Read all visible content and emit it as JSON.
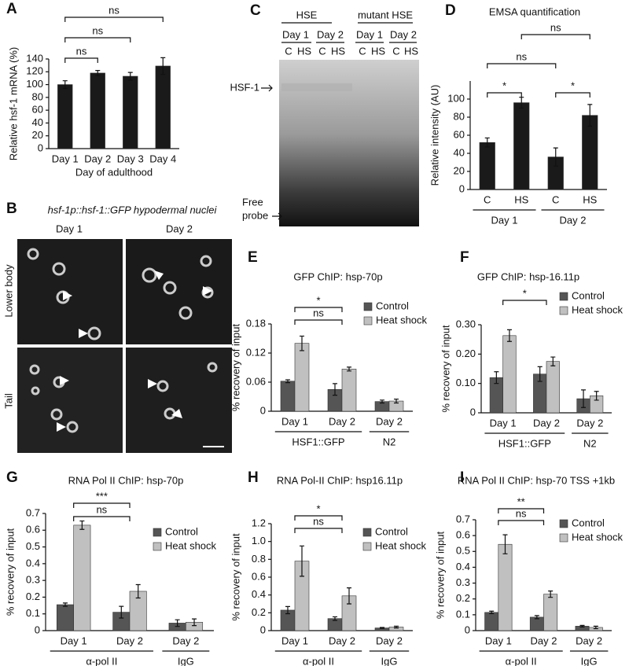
{
  "chart_data": [
    {
      "type": "bar",
      "panel": "A",
      "ylabel": "Relative hsf-1 mRNA (%)",
      "xlabel": "Day of adulthood",
      "categories": [
        "Day 1",
        "Day 2",
        "Day 3",
        "Day 4"
      ],
      "values": [
        100,
        118,
        113,
        129
      ],
      "errors": [
        6,
        4,
        6,
        13
      ],
      "color": "#1a1a1a",
      "ylim": [
        0,
        140
      ],
      "yticks": [
        0,
        20,
        40,
        60,
        80,
        100,
        120,
        140
      ],
      "significance": [
        {
          "between": [
            0,
            1
          ],
          "label": "ns"
        },
        {
          "between": [
            0,
            2
          ],
          "label": "ns"
        },
        {
          "between": [
            0,
            3
          ],
          "label": "ns"
        }
      ]
    },
    {
      "type": "bar",
      "panel": "D",
      "title": "EMSA quantification",
      "ylabel": "Relative intensity (AU)",
      "categories": [
        "C",
        "HS",
        "C",
        "HS"
      ],
      "values": [
        52,
        96,
        36,
        82
      ],
      "errors": [
        5,
        6,
        10,
        12
      ],
      "color": "#1a1a1a",
      "ylim": [
        0,
        120
      ],
      "yticks": [
        0,
        20,
        40,
        60,
        80,
        100
      ],
      "groups": [
        {
          "label": "Day 1",
          "span": [
            0,
            1
          ]
        },
        {
          "label": "Day 2",
          "span": [
            2,
            3
          ]
        }
      ],
      "significance": [
        {
          "between": [
            0,
            1
          ],
          "label": "*"
        },
        {
          "between": [
            2,
            3
          ],
          "label": "*"
        },
        {
          "between": [
            0,
            2
          ],
          "label": "ns"
        },
        {
          "between": [
            1,
            3
          ],
          "label": "ns"
        }
      ]
    },
    {
      "type": "bar",
      "panel": "E",
      "title": "GFP ChIP: hsp-70p",
      "ylabel": "% recovery of input",
      "categories": [
        "Day 1",
        "Day 2",
        "Day 2"
      ],
      "series": [
        {
          "name": "Control",
          "color": "#555555",
          "values": [
            0.062,
            0.045,
            0.02
          ],
          "errors": [
            0.003,
            0.012,
            0.003
          ]
        },
        {
          "name": "Heat shock",
          "color": "#c0c0c0",
          "values": [
            0.14,
            0.087,
            0.021
          ],
          "errors": [
            0.015,
            0.004,
            0.004
          ]
        }
      ],
      "ylim": [
        0,
        0.18
      ],
      "yticks": [
        0,
        0.06,
        0.12,
        0.18
      ],
      "groups": [
        {
          "label": "HSF1::GFP",
          "span": [
            0,
            1
          ]
        },
        {
          "label": "N2",
          "span": [
            2,
            2
          ]
        }
      ],
      "significance": [
        {
          "between": [
            0,
            1
          ],
          "label": "ns"
        },
        {
          "between": [
            0,
            1
          ],
          "label": "*"
        }
      ]
    },
    {
      "type": "bar",
      "panel": "F",
      "title": "GFP ChIP: hsp-16.11p",
      "ylabel": "% recovery of input",
      "categories": [
        "Day 1",
        "Day 2",
        "Day 2"
      ],
      "series": [
        {
          "name": "Control",
          "color": "#555555",
          "values": [
            0.12,
            0.132,
            0.048
          ],
          "errors": [
            0.02,
            0.025,
            0.03
          ]
        },
        {
          "name": "Heat shock",
          "color": "#c0c0c0",
          "values": [
            0.263,
            0.175,
            0.058
          ],
          "errors": [
            0.02,
            0.015,
            0.015
          ]
        }
      ],
      "ylim": [
        0,
        0.3
      ],
      "yticks": [
        0,
        {
          "value": 0.1,
          "label": "0.10"
        },
        {
          "value": 0.2,
          "label": "0.20"
        },
        {
          "value": 0.3,
          "label": "0.30"
        }
      ],
      "groups": [
        {
          "label": "HSF1::GFP",
          "span": [
            0,
            1
          ]
        },
        {
          "label": "N2",
          "span": [
            2,
            2
          ]
        }
      ],
      "significance": [
        {
          "between": [
            0,
            1
          ],
          "label": "*"
        }
      ]
    },
    {
      "type": "bar",
      "panel": "G",
      "title": "RNA Pol II ChIP: hsp-70p",
      "ylabel": "% recovery of input",
      "categories": [
        "Day 1",
        "Day 2",
        "Day 2"
      ],
      "series": [
        {
          "name": "Control",
          "color": "#555555",
          "values": [
            0.155,
            0.11,
            0.045
          ],
          "errors": [
            0.01,
            0.035,
            0.02
          ]
        },
        {
          "name": "Heat shock",
          "color": "#c0c0c0",
          "values": [
            0.63,
            0.235,
            0.05
          ],
          "errors": [
            0.025,
            0.04,
            0.02
          ]
        }
      ],
      "ylim": [
        0,
        0.7
      ],
      "yticks": [
        0,
        0.1,
        0.2,
        0.3,
        0.4,
        0.5,
        0.6,
        0.7
      ],
      "groups": [
        {
          "label": "α-pol II",
          "span": [
            0,
            1
          ]
        },
        {
          "label": "IgG",
          "span": [
            2,
            2
          ]
        }
      ],
      "significance": [
        {
          "between": [
            0,
            1
          ],
          "label": "ns"
        },
        {
          "between": [
            0,
            1
          ],
          "label": "***"
        }
      ]
    },
    {
      "type": "bar",
      "panel": "H",
      "title": "RNA Pol-II ChIP: hsp16.11p",
      "ylabel": "% recovery of input",
      "categories": [
        "Day 1",
        "Day 2",
        "Day 2"
      ],
      "series": [
        {
          "name": "Control",
          "color": "#555555",
          "values": [
            0.23,
            0.135,
            0.03
          ],
          "errors": [
            0.04,
            0.02,
            0.005
          ]
        },
        {
          "name": "Heat shock",
          "color": "#c0c0c0",
          "values": [
            0.78,
            0.39,
            0.04
          ],
          "errors": [
            0.17,
            0.09,
            0.01
          ]
        }
      ],
      "ylim": [
        0,
        1.2
      ],
      "yticks": [
        0,
        0.2,
        0.4,
        0.6,
        0.8,
        {
          "value": 1,
          "label": "1.0"
        },
        1.2
      ],
      "groups": [
        {
          "label": "α-pol II",
          "span": [
            0,
            1
          ]
        },
        {
          "label": "IgG",
          "span": [
            2,
            2
          ]
        }
      ],
      "significance": [
        {
          "between": [
            0,
            1
          ],
          "label": "ns"
        },
        {
          "between": [
            0,
            1
          ],
          "label": "*"
        }
      ]
    },
    {
      "type": "bar",
      "panel": "I",
      "title": "RNA Pol II ChIP: hsp-70 TSS +1kb",
      "ylabel": "% recovery of input",
      "categories": [
        "Day 1",
        "Day 2",
        "Day 2"
      ],
      "series": [
        {
          "name": "Control",
          "color": "#555555",
          "values": [
            0.115,
            0.085,
            0.028
          ],
          "errors": [
            0.008,
            0.01,
            0.005
          ]
        },
        {
          "name": "Heat shock",
          "color": "#c0c0c0",
          "values": [
            0.545,
            0.23,
            0.02
          ],
          "errors": [
            0.06,
            0.02,
            0.008
          ]
        }
      ],
      "ylim": [
        0,
        0.7
      ],
      "yticks": [
        0,
        0.1,
        0.2,
        0.3,
        0.4,
        0.5,
        0.6,
        0.7
      ],
      "groups": [
        {
          "label": "α-pol II",
          "span": [
            0,
            1
          ]
        },
        {
          "label": "IgG",
          "span": [
            2,
            2
          ]
        }
      ],
      "significance": [
        {
          "between": [
            0,
            1
          ],
          "label": "ns"
        },
        {
          "between": [
            0,
            1
          ],
          "label": "**"
        }
      ]
    }
  ],
  "panel_b": {
    "letter": "B",
    "title": "hsf-1p::hsf-1::GFP hypodermal nuclei",
    "columns": [
      "Day 1",
      "Day 2"
    ],
    "rows": [
      "Lower body",
      "Tail"
    ]
  },
  "panel_c": {
    "letter": "C",
    "headers": [
      "HSE",
      "mutant HSE"
    ],
    "days": [
      "Day 1",
      "Day 2",
      "Day 1",
      "Day 2"
    ],
    "lanes": [
      "C",
      "HS",
      "C",
      "HS",
      "C",
      "HS",
      "C",
      "HS"
    ],
    "band": "HSF-1",
    "free_probe": [
      "Free",
      "probe"
    ]
  }
}
